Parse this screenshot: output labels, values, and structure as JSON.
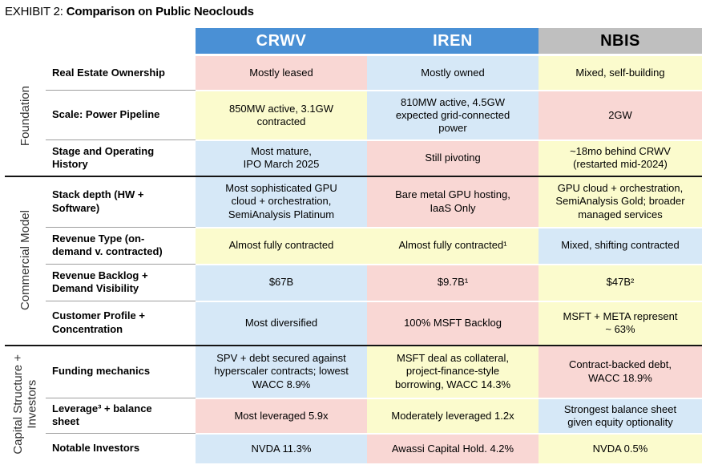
{
  "exhibit": {
    "label": "EXHIBIT 2:",
    "title": "Comparison on Public Neoclouds"
  },
  "colors": {
    "header_blue": "#4a90d5",
    "header_gray": "#bfbfbf",
    "header_text_light": "#ffffff",
    "header_text_dark": "#000000",
    "cell_pink": "#f9d7d4",
    "cell_blue": "#d6e8f7",
    "cell_yellow": "#fbfbcd"
  },
  "table": {
    "columns": [
      {
        "id": "crwv",
        "label": "CRWV",
        "style": "blue"
      },
      {
        "id": "iren",
        "label": "IREN",
        "style": "blue"
      },
      {
        "id": "nbis",
        "label": "NBIS",
        "style": "gray"
      }
    ],
    "groups": [
      {
        "label": "Foundation",
        "rows": [
          {
            "label": "Real Estate Ownership",
            "cells": [
              {
                "text": "Mostly leased",
                "color": "pink"
              },
              {
                "text": "Mostly owned",
                "color": "blue"
              },
              {
                "text": "Mixed, self-building",
                "color": "yellow"
              }
            ]
          },
          {
            "label": "Scale: Power Pipeline",
            "cells": [
              {
                "text": "850MW active, 3.1GW\ncontracted",
                "color": "yellow"
              },
              {
                "text": "810MW active, 4.5GW\nexpected grid-connected\npower",
                "color": "blue"
              },
              {
                "text": "2GW",
                "color": "pink"
              }
            ]
          },
          {
            "label": "Stage and Operating\nHistory",
            "cells": [
              {
                "text": "Most mature,\nIPO March 2025",
                "color": "blue"
              },
              {
                "text": "Still pivoting",
                "color": "pink"
              },
              {
                "text": "~18mo behind CRWV\n(restarted mid-2024)",
                "color": "yellow"
              }
            ]
          }
        ]
      },
      {
        "label": "Commercial Model",
        "rows": [
          {
            "label": "Stack depth (HW +\nSoftware)",
            "cells": [
              {
                "text": "Most sophisticated GPU\ncloud + orchestration,\nSemiAnalysis Platinum",
                "color": "blue"
              },
              {
                "text": "Bare metal GPU hosting,\nIaaS Only",
                "color": "pink"
              },
              {
                "text": "GPU cloud + orchestration,\nSemiAnalysis Gold; broader\nmanaged services",
                "color": "yellow"
              }
            ]
          },
          {
            "label": "Revenue Type (on-\ndemand v. contracted)",
            "cells": [
              {
                "text": "Almost fully contracted",
                "color": "yellow"
              },
              {
                "text": "Almost fully contracted¹",
                "color": "yellow"
              },
              {
                "text": "Mixed, shifting contracted",
                "color": "blue"
              }
            ]
          },
          {
            "label": "Revenue Backlog +\nDemand Visibility",
            "cells": [
              {
                "text": "$67B",
                "color": "blue"
              },
              {
                "text": "$9.7B¹",
                "color": "pink"
              },
              {
                "text": "$47B²",
                "color": "yellow"
              }
            ]
          },
          {
            "label": "Customer Profile +\nConcentration",
            "cells": [
              {
                "text": "Most diversified",
                "color": "blue"
              },
              {
                "text": "100% MSFT Backlog",
                "color": "pink"
              },
              {
                "text": "MSFT + META represent\n~ 63%",
                "color": "yellow"
              }
            ]
          }
        ]
      },
      {
        "label": "Capital Structure +\nInvestors",
        "rows": [
          {
            "label": "Funding mechanics",
            "cells": [
              {
                "text": "SPV + debt secured against\nhyperscaler contracts; lowest\nWACC 8.9%",
                "color": "blue"
              },
              {
                "text": "MSFT deal as collateral,\nproject-finance-style\nborrowing, WACC 14.3%",
                "color": "yellow"
              },
              {
                "text": "Contract-backed debt,\nWACC 18.9%",
                "color": "pink"
              }
            ]
          },
          {
            "label": "Leverage³ + balance\nsheet",
            "cells": [
              {
                "text": "Most leveraged 5.9x",
                "color": "pink"
              },
              {
                "text": "Moderately leveraged 1.2x",
                "color": "yellow"
              },
              {
                "text": "Strongest balance sheet\ngiven equity optionality",
                "color": "blue"
              }
            ]
          },
          {
            "label": "Notable Investors",
            "cells": [
              {
                "text": "NVDA 11.3%",
                "color": "blue"
              },
              {
                "text": "Awassi Capital Hold. 4.2%",
                "color": "pink"
              },
              {
                "text": "NVDA 0.5%",
                "color": "yellow"
              }
            ]
          }
        ]
      }
    ]
  }
}
